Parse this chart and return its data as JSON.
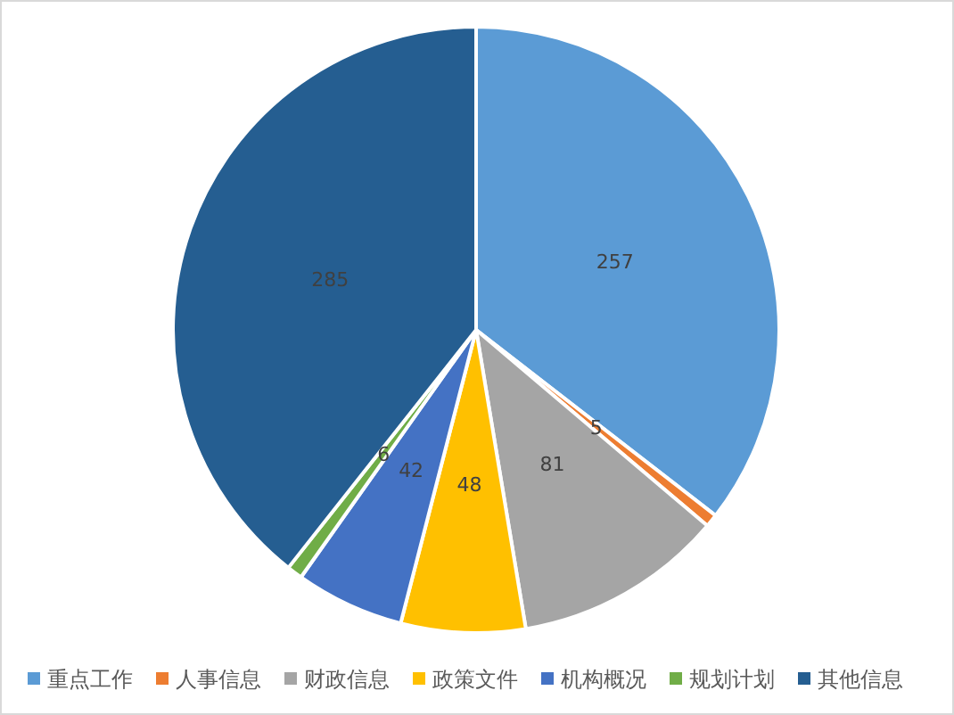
{
  "chart_data": {
    "type": "pie",
    "categories": [
      "重点工作",
      "人事信息",
      "财政信息",
      "政策文件",
      "机构概况",
      "规划计划",
      "其他信息"
    ],
    "values": [
      257,
      5,
      81,
      48,
      42,
      6,
      285
    ],
    "colors": [
      "#5b9bd5",
      "#ed7d31",
      "#a5a5a5",
      "#ffc000",
      "#4472c4",
      "#70ad47",
      "#255e91"
    ],
    "data_labels": true,
    "legend": "bottom"
  }
}
